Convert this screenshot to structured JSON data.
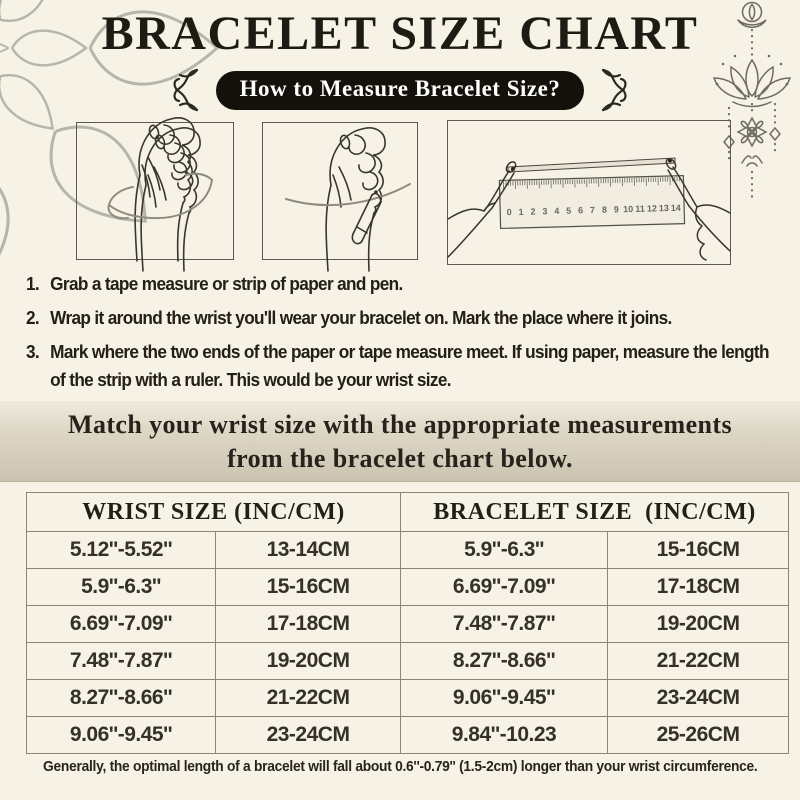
{
  "header": {
    "title": "BRACELET SIZE CHART",
    "pill_label": "How to Measure Bracelet Size?"
  },
  "steps": [
    {
      "num": "1.",
      "text": "Grab a tape measure or strip of paper and pen."
    },
    {
      "num": "2.",
      "text": "Wrap it around the wrist you'll wear your bracelet on. Mark the place where it joins."
    },
    {
      "num": "3.",
      "text": "Mark where the two ends of the paper or tape measure meet. If using paper, measure the length of the strip with a ruler. This would be your wrist size."
    }
  ],
  "banner": {
    "line1": "Match your wrist size with the appropriate measurements",
    "line2": "from the bracelet chart below."
  },
  "size_table": {
    "headers": [
      {
        "label": "WRIST SIZE (INC/CM)"
      },
      {
        "label": "BRACELET SIZE  (INC/CM)"
      }
    ],
    "rows": [
      [
        "5.12''-5.52''",
        "13-14CM",
        "5.9''-6.3''",
        "15-16CM"
      ],
      [
        "5.9''-6.3''",
        "15-16CM",
        "6.69''-7.09''",
        "17-18CM"
      ],
      [
        "6.69''-7.09''",
        "17-18CM",
        "7.48''-7.87''",
        "19-20CM"
      ],
      [
        "7.48''-7.87''",
        "19-20CM",
        "8.27''-8.66''",
        "21-22CM"
      ],
      [
        "8.27''-8.66''",
        "21-22CM",
        "9.06''-9.45''",
        "23-24CM"
      ],
      [
        "9.06''-9.45''",
        "23-24CM",
        "9.84''-10.23",
        "25-26CM"
      ]
    ]
  },
  "footer": {
    "text": "Generally, the optimal length of a bracelet will fall about 0.6''-0.79'' (1.5-2cm) longer than your wrist circumference."
  },
  "illustrations": {
    "ruler_numbers": [
      "0",
      "1",
      "2",
      "3",
      "4",
      "5",
      "6",
      "7",
      "8",
      "9",
      "10",
      "11",
      "12",
      "13",
      "14"
    ]
  },
  "icons": {
    "mandala": "mandala-flower-line-art",
    "lotus": "lotus-hanging-ornament-line-art",
    "flourish": "curly-bracket-flourish",
    "hand_tape": "fist-with-tape-around-wrist",
    "hand_pen": "fist-with-pen-marking-wrist",
    "hand_ruler": "hands-measuring-strip-with-ruler"
  },
  "colors": {
    "background": "#f6f2e6",
    "ink": "#2a261f",
    "pill_bg": "#14100a",
    "pill_text": "#ffffff",
    "banner_top": "#f0ebdf",
    "banner_bottom": "#ccc4b1",
    "table_border": "#8c8678",
    "line_art": "#3a362e",
    "tape_gray": "#8f8b7e",
    "mandala_gray": "#b7b4ab",
    "lotus_gray": "#6f6b60"
  }
}
